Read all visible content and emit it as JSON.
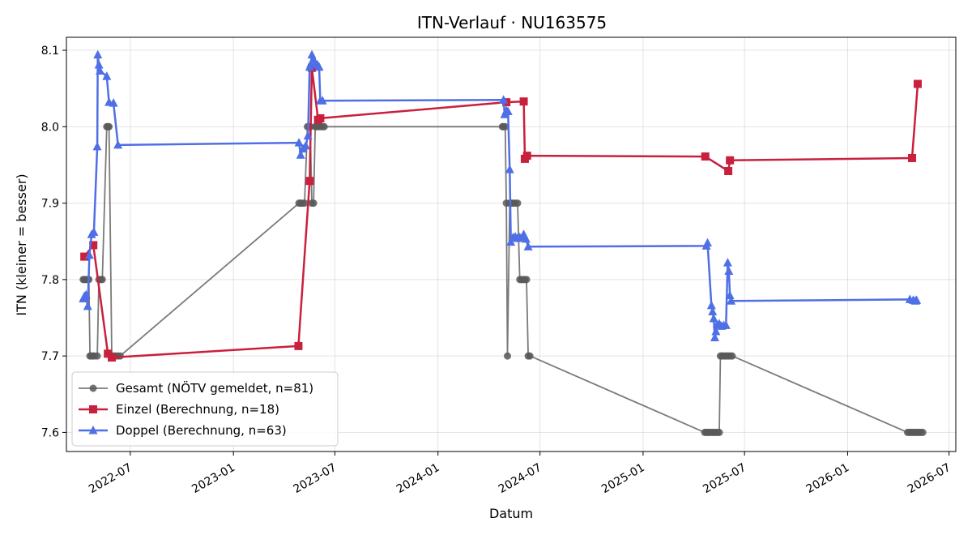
{
  "chart_data": {
    "type": "line",
    "title": "ITN-Verlauf · NU163575",
    "xlabel": "Datum",
    "ylabel": "ITN  (kleiner = besser)",
    "xlim": [
      "2022-03-09",
      "2026-07-13"
    ],
    "ylim": [
      7.575,
      8.117
    ],
    "x_ticks": [
      "2022-07",
      "2023-01",
      "2023-07",
      "2024-01",
      "2024-07",
      "2025-01",
      "2025-07",
      "2026-01",
      "2026-07"
    ],
    "y_ticks": [
      "7.6",
      "7.7",
      "7.8",
      "7.9",
      "8.0",
      "8.1"
    ],
    "grid": true,
    "legend_position": "lower-left",
    "series": [
      {
        "name": "Gesamt (NÖTV gemeldet, n=81)",
        "color": "#595959",
        "marker": "circle",
        "points": [
          [
            "2022-04-08",
            7.8
          ],
          [
            "2022-04-10",
            7.8
          ],
          [
            "2022-04-13",
            7.8
          ],
          [
            "2022-04-16",
            7.8
          ],
          [
            "2022-04-18",
            7.8
          ],
          [
            "2022-04-20",
            7.7
          ],
          [
            "2022-04-22",
            7.7
          ],
          [
            "2022-04-25",
            7.7
          ],
          [
            "2022-04-28",
            7.7
          ],
          [
            "2022-05-03",
            7.7
          ],
          [
            "2022-05-06",
            7.8
          ],
          [
            "2022-05-09",
            7.8
          ],
          [
            "2022-05-12",
            7.8
          ],
          [
            "2022-05-20",
            8.0
          ],
          [
            "2022-05-22",
            8.0
          ],
          [
            "2022-05-24",
            8.0
          ],
          [
            "2022-05-29",
            7.7
          ],
          [
            "2022-06-01",
            7.7
          ],
          [
            "2022-06-05",
            7.7
          ],
          [
            "2022-06-09",
            7.7
          ],
          [
            "2022-06-13",
            7.7
          ],
          [
            "2023-04-28",
            7.9
          ],
          [
            "2023-05-01",
            7.9
          ],
          [
            "2023-05-04",
            7.9
          ],
          [
            "2023-05-08",
            7.9
          ],
          [
            "2023-05-13",
            8.0
          ],
          [
            "2023-05-16",
            8.0
          ],
          [
            "2023-05-18",
            8.0
          ],
          [
            "2023-05-21",
            7.9
          ],
          [
            "2023-05-24",
            7.9
          ],
          [
            "2023-05-27",
            8.0
          ],
          [
            "2023-05-30",
            8.0
          ],
          [
            "2023-06-02",
            8.0
          ],
          [
            "2023-06-05",
            8.0
          ],
          [
            "2023-06-09",
            8.0
          ],
          [
            "2023-06-12",
            8.0
          ],
          [
            "2024-04-25",
            8.0
          ],
          [
            "2024-04-27",
            8.0
          ],
          [
            "2024-04-30",
            8.0
          ],
          [
            "2024-05-02",
            7.9
          ],
          [
            "2024-05-04",
            7.7
          ],
          [
            "2024-05-08",
            7.9
          ],
          [
            "2024-05-11",
            7.9
          ],
          [
            "2024-05-14",
            7.9
          ],
          [
            "2024-05-18",
            7.9
          ],
          [
            "2024-05-22",
            7.9
          ],
          [
            "2024-05-26",
            7.8
          ],
          [
            "2024-05-29",
            7.8
          ],
          [
            "2024-06-01",
            7.8
          ],
          [
            "2024-06-04",
            7.8
          ],
          [
            "2024-06-07",
            7.8
          ],
          [
            "2024-06-10",
            7.7
          ],
          [
            "2024-06-13",
            7.7
          ],
          [
            "2025-04-21",
            7.6
          ],
          [
            "2025-04-24",
            7.6
          ],
          [
            "2025-04-26",
            7.6
          ],
          [
            "2025-04-29",
            7.6
          ],
          [
            "2025-05-02",
            7.6
          ],
          [
            "2025-05-05",
            7.6
          ],
          [
            "2025-05-08",
            7.6
          ],
          [
            "2025-05-11",
            7.6
          ],
          [
            "2025-05-14",
            7.6
          ],
          [
            "2025-05-17",
            7.6
          ],
          [
            "2025-05-19",
            7.7
          ],
          [
            "2025-05-22",
            7.7
          ],
          [
            "2025-05-25",
            7.7
          ],
          [
            "2025-05-28",
            7.7
          ],
          [
            "2025-05-31",
            7.7
          ],
          [
            "2025-06-03",
            7.7
          ],
          [
            "2025-06-06",
            7.7
          ],
          [
            "2025-06-09",
            7.7
          ],
          [
            "2026-04-18",
            7.6
          ],
          [
            "2026-04-21",
            7.6
          ],
          [
            "2026-04-24",
            7.6
          ],
          [
            "2026-04-27",
            7.6
          ],
          [
            "2026-04-30",
            7.6
          ],
          [
            "2026-05-03",
            7.6
          ],
          [
            "2026-05-06",
            7.6
          ],
          [
            "2026-05-09",
            7.6
          ],
          [
            "2026-05-12",
            7.6
          ],
          [
            "2026-05-15",
            7.6
          ]
        ]
      },
      {
        "name": "Einzel (Berechnung, n=18)",
        "color": "#c8203d",
        "marker": "square",
        "points": [
          [
            "2022-04-10",
            7.83
          ],
          [
            "2022-04-26",
            7.845
          ],
          [
            "2022-05-22",
            7.703
          ],
          [
            "2022-05-29",
            7.698
          ],
          [
            "2023-04-27",
            7.713
          ],
          [
            "2023-05-17",
            7.929
          ],
          [
            "2023-05-21",
            8.077
          ],
          [
            "2023-06-01",
            8.009
          ],
          [
            "2023-06-05",
            8.011
          ],
          [
            "2024-05-02",
            8.032
          ],
          [
            "2024-06-02",
            8.033
          ],
          [
            "2024-06-04",
            7.958
          ],
          [
            "2024-06-08",
            7.962
          ],
          [
            "2025-04-22",
            7.961
          ],
          [
            "2025-06-02",
            7.942
          ],
          [
            "2025-06-05",
            7.956
          ],
          [
            "2026-04-26",
            7.959
          ],
          [
            "2026-05-06",
            8.056
          ]
        ]
      },
      {
        "name": "Doppel (Berechnung, n=63)",
        "color": "#4f6fe6",
        "marker": "triangle",
        "points": [
          [
            "2022-04-08",
            7.775
          ],
          [
            "2022-04-10",
            7.778
          ],
          [
            "2022-04-13",
            7.78
          ],
          [
            "2022-04-16",
            7.765
          ],
          [
            "2022-04-19",
            7.832
          ],
          [
            "2022-04-23",
            7.859
          ],
          [
            "2022-04-27",
            7.862
          ],
          [
            "2022-05-03",
            7.974
          ],
          [
            "2022-05-04",
            8.094
          ],
          [
            "2022-05-06",
            8.081
          ],
          [
            "2022-05-08",
            8.073
          ],
          [
            "2022-05-20",
            8.066
          ],
          [
            "2022-05-24",
            8.032
          ],
          [
            "2022-06-01",
            8.031
          ],
          [
            "2022-06-09",
            7.976
          ],
          [
            "2023-04-28",
            7.979
          ],
          [
            "2023-05-01",
            7.963
          ],
          [
            "2023-05-05",
            7.971
          ],
          [
            "2023-05-10",
            7.975
          ],
          [
            "2023-05-14",
            7.988
          ],
          [
            "2023-05-17",
            8.078
          ],
          [
            "2023-05-19",
            8.082
          ],
          [
            "2023-05-21",
            8.094
          ],
          [
            "2023-05-24",
            8.088
          ],
          [
            "2023-05-27",
            8.082
          ],
          [
            "2023-05-31",
            8.081
          ],
          [
            "2023-06-03",
            8.078
          ],
          [
            "2023-06-05",
            8.034
          ],
          [
            "2023-06-09",
            8.034
          ],
          [
            "2024-04-27",
            8.035
          ],
          [
            "2024-04-29",
            8.016
          ],
          [
            "2024-05-02",
            8.021
          ],
          [
            "2024-05-05",
            8.02
          ],
          [
            "2024-05-08",
            7.944
          ],
          [
            "2024-05-10",
            7.849
          ],
          [
            "2024-05-14",
            7.855
          ],
          [
            "2024-05-18",
            7.856
          ],
          [
            "2024-05-22",
            7.854
          ],
          [
            "2024-05-26",
            7.855
          ],
          [
            "2024-05-30",
            7.855
          ],
          [
            "2024-06-02",
            7.859
          ],
          [
            "2024-06-06",
            7.853
          ],
          [
            "2024-06-10",
            7.843
          ],
          [
            "2025-04-24",
            7.844
          ],
          [
            "2025-04-26",
            7.848
          ],
          [
            "2025-05-03",
            7.766
          ],
          [
            "2025-05-05",
            7.758
          ],
          [
            "2025-05-07",
            7.749
          ],
          [
            "2025-05-09",
            7.724
          ],
          [
            "2025-05-11",
            7.732
          ],
          [
            "2025-05-13",
            7.741
          ],
          [
            "2025-05-17",
            7.742
          ],
          [
            "2025-05-21",
            7.739
          ],
          [
            "2025-05-25",
            7.74
          ],
          [
            "2025-05-29",
            7.74
          ],
          [
            "2025-06-01",
            7.822
          ],
          [
            "2025-06-03",
            7.811
          ],
          [
            "2025-06-05",
            7.779
          ],
          [
            "2025-06-07",
            7.772
          ],
          [
            "2026-04-22",
            7.774
          ],
          [
            "2026-04-28",
            7.773
          ],
          [
            "2026-05-02",
            7.772
          ],
          [
            "2026-05-04",
            7.773
          ]
        ]
      }
    ]
  }
}
